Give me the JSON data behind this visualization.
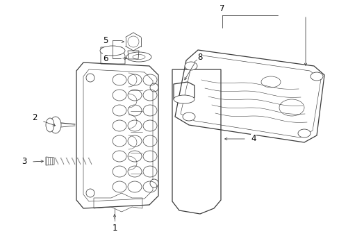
{
  "bg_color": "#ffffff",
  "line_color": "#3a3a3a",
  "lw_main": 0.9,
  "lw_thin": 0.55,
  "fig_width": 4.89,
  "fig_height": 3.6,
  "dpi": 100
}
